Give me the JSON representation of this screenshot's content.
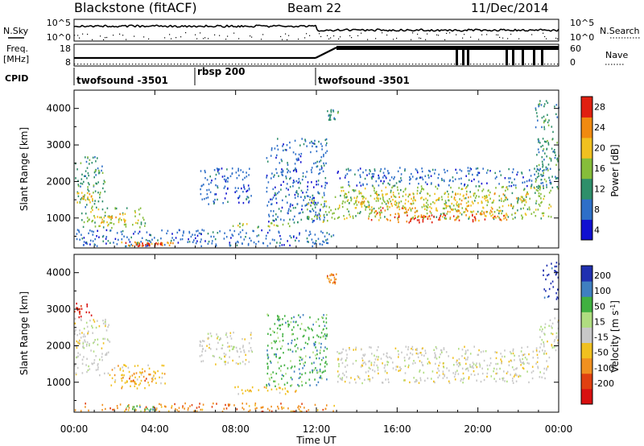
{
  "header": {
    "title": "Blackstone (fitACF)",
    "beam": "Beam 22",
    "date": "11/Dec/2014"
  },
  "summary": {
    "left_labels": {
      "nsky": "N.Sky",
      "freq_line1": "Freq.",
      "freq_line2": "[MHz]",
      "cpid": "CPID"
    },
    "right_labels": {
      "nsearch": "N.Search",
      "nave": "Nave"
    },
    "nsky_ticks": [
      "10^5",
      "10^0"
    ],
    "nsearch_ticks": [
      "10^5",
      "10^0"
    ],
    "freq_ticks": [
      "18",
      "8"
    ],
    "nave_ticks": [
      "60",
      "0"
    ],
    "cpid_segments": [
      {
        "label": "twofsound -3501",
        "start_hour": 0.0
      },
      {
        "label": "rbsp 200",
        "start_hour": 6.0
      },
      {
        "label": "twofsound -3501",
        "start_hour": 12.0
      }
    ]
  },
  "colorbars": {
    "power": {
      "label": "Power [dB]",
      "ticks": [
        "28",
        "24",
        "20",
        "16",
        "12",
        "8",
        "4"
      ]
    },
    "velocity": {
      "label_main": "Velocity [m s",
      "label_sup": "-1",
      "label_close": "]",
      "ticks": [
        "200",
        "100",
        "50",
        "15",
        "-15",
        "-50",
        "-100",
        "-200"
      ]
    }
  },
  "axes": {
    "ylabel": "Slant Range [km]",
    "xlabel": "Time UT",
    "x_ticks": [
      "00:00",
      "04:00",
      "08:00",
      "12:00",
      "16:00",
      "20:00",
      "00:00"
    ],
    "y_ticks": [
      "1000",
      "2000",
      "3000",
      "4000"
    ]
  },
  "chart_data": [
    {
      "type": "heatmap",
      "title": "Power [dB]",
      "xlabel": "Time UT",
      "ylabel": "Slant Range [km]",
      "xlim_hours": [
        0,
        24
      ],
      "ylim_km": [
        180,
        4500
      ],
      "colorbar_ticks_db": [
        4,
        8,
        12,
        16,
        20,
        24,
        28
      ],
      "colors": [
        "#1010d0",
        "#2e6fc8",
        "#2e8f6a",
        "#86bd3a",
        "#f0c020",
        "#f08a10",
        "#e02010"
      ],
      "regions": [
        {
          "t": [
            0.0,
            1.5
          ],
          "r": [
            1300,
            2700
          ],
          "level": 2
        },
        {
          "t": [
            0.1,
            0.9
          ],
          "r": [
            1450,
            1750
          ],
          "level": 4
        },
        {
          "t": [
            0.3,
            3.5
          ],
          "r": [
            750,
            1300
          ],
          "level": 3
        },
        {
          "t": [
            1.2,
            2.6
          ],
          "r": [
            900,
            1150
          ],
          "level": 4
        },
        {
          "t": [
            0.0,
            13.0
          ],
          "r": [
            250,
            700
          ],
          "level": 1
        },
        {
          "t": [
            2.0,
            5.0
          ],
          "r": [
            250,
            380
          ],
          "level": 5
        },
        {
          "t": [
            3.2,
            4.4
          ],
          "r": [
            250,
            340
          ],
          "level": 6
        },
        {
          "t": [
            6.2,
            8.8
          ],
          "r": [
            1400,
            2400
          ],
          "level": 1
        },
        {
          "t": [
            7.8,
            11.0
          ],
          "r": [
            750,
            900
          ],
          "level": 3
        },
        {
          "t": [
            9.5,
            12.5
          ],
          "r": [
            900,
            3200
          ],
          "level": 1
        },
        {
          "t": [
            11.5,
            13.0
          ],
          "r": [
            900,
            1600
          ],
          "level": 3
        },
        {
          "t": [
            12.5,
            13.1
          ],
          "r": [
            3700,
            4000
          ],
          "level": 2
        },
        {
          "t": [
            13.0,
            23.6
          ],
          "r": [
            1900,
            2400
          ],
          "level": 1
        },
        {
          "t": [
            13.0,
            23.6
          ],
          "r": [
            1000,
            1900
          ],
          "level": 3
        },
        {
          "t": [
            13.5,
            22.5
          ],
          "r": [
            1300,
            1700
          ],
          "level": 4
        },
        {
          "t": [
            14.5,
            21.5
          ],
          "r": [
            950,
            1300
          ],
          "level": 5
        },
        {
          "t": [
            16.0,
            20.0
          ],
          "r": [
            900,
            1100
          ],
          "level": 6
        },
        {
          "t": [
            22.8,
            24.0
          ],
          "r": [
            1800,
            4300
          ],
          "level": 2
        }
      ]
    },
    {
      "type": "heatmap",
      "title": "Velocity [m s-1]",
      "xlabel": "Time UT",
      "ylabel": "Slant Range [km]",
      "xlim_hours": [
        0,
        24
      ],
      "ylim_km": [
        180,
        4500
      ],
      "colorbar_ticks_ms": [
        200,
        100,
        50,
        15,
        -15,
        -50,
        -100,
        -200
      ],
      "colors": [
        "#2030b0",
        "#3f7fc0",
        "#40b040",
        "#b0dd80",
        "#c8c8c8",
        "#f0c020",
        "#f09020",
        "#e04010",
        "#d81010"
      ],
      "regions": [
        {
          "t": [
            0.0,
            1.0
          ],
          "r": [
            2800,
            3200
          ],
          "level": 8
        },
        {
          "t": [
            0.0,
            1.8
          ],
          "r": [
            1200,
            2800
          ],
          "level": 4
        },
        {
          "t": [
            1.8,
            4.5
          ],
          "r": [
            850,
            1500
          ],
          "level": 5
        },
        {
          "t": [
            2.5,
            4.0
          ],
          "r": [
            1000,
            1300
          ],
          "level": 6
        },
        {
          "t": [
            0.0,
            13.0
          ],
          "r": [
            220,
            450
          ],
          "level": 6
        },
        {
          "t": [
            2.5,
            4.0
          ],
          "r": [
            220,
            380
          ],
          "level": 2
        },
        {
          "t": [
            6.2,
            8.8
          ],
          "r": [
            1500,
            2400
          ],
          "level": 4
        },
        {
          "t": [
            7.5,
            11.0
          ],
          "r": [
            700,
            900
          ],
          "level": 5
        },
        {
          "t": [
            9.5,
            12.5
          ],
          "r": [
            900,
            2900
          ],
          "level": 2
        },
        {
          "t": [
            12.5,
            13.1
          ],
          "r": [
            3700,
            4000
          ],
          "level": 6
        },
        {
          "t": [
            13.0,
            23.6
          ],
          "r": [
            1000,
            2000
          ],
          "level": 4
        },
        {
          "t": [
            23.0,
            24.0
          ],
          "r": [
            1800,
            2800
          ],
          "level": 4
        },
        {
          "t": [
            23.2,
            24.0
          ],
          "r": [
            3300,
            4300
          ],
          "level": 0
        }
      ]
    }
  ]
}
